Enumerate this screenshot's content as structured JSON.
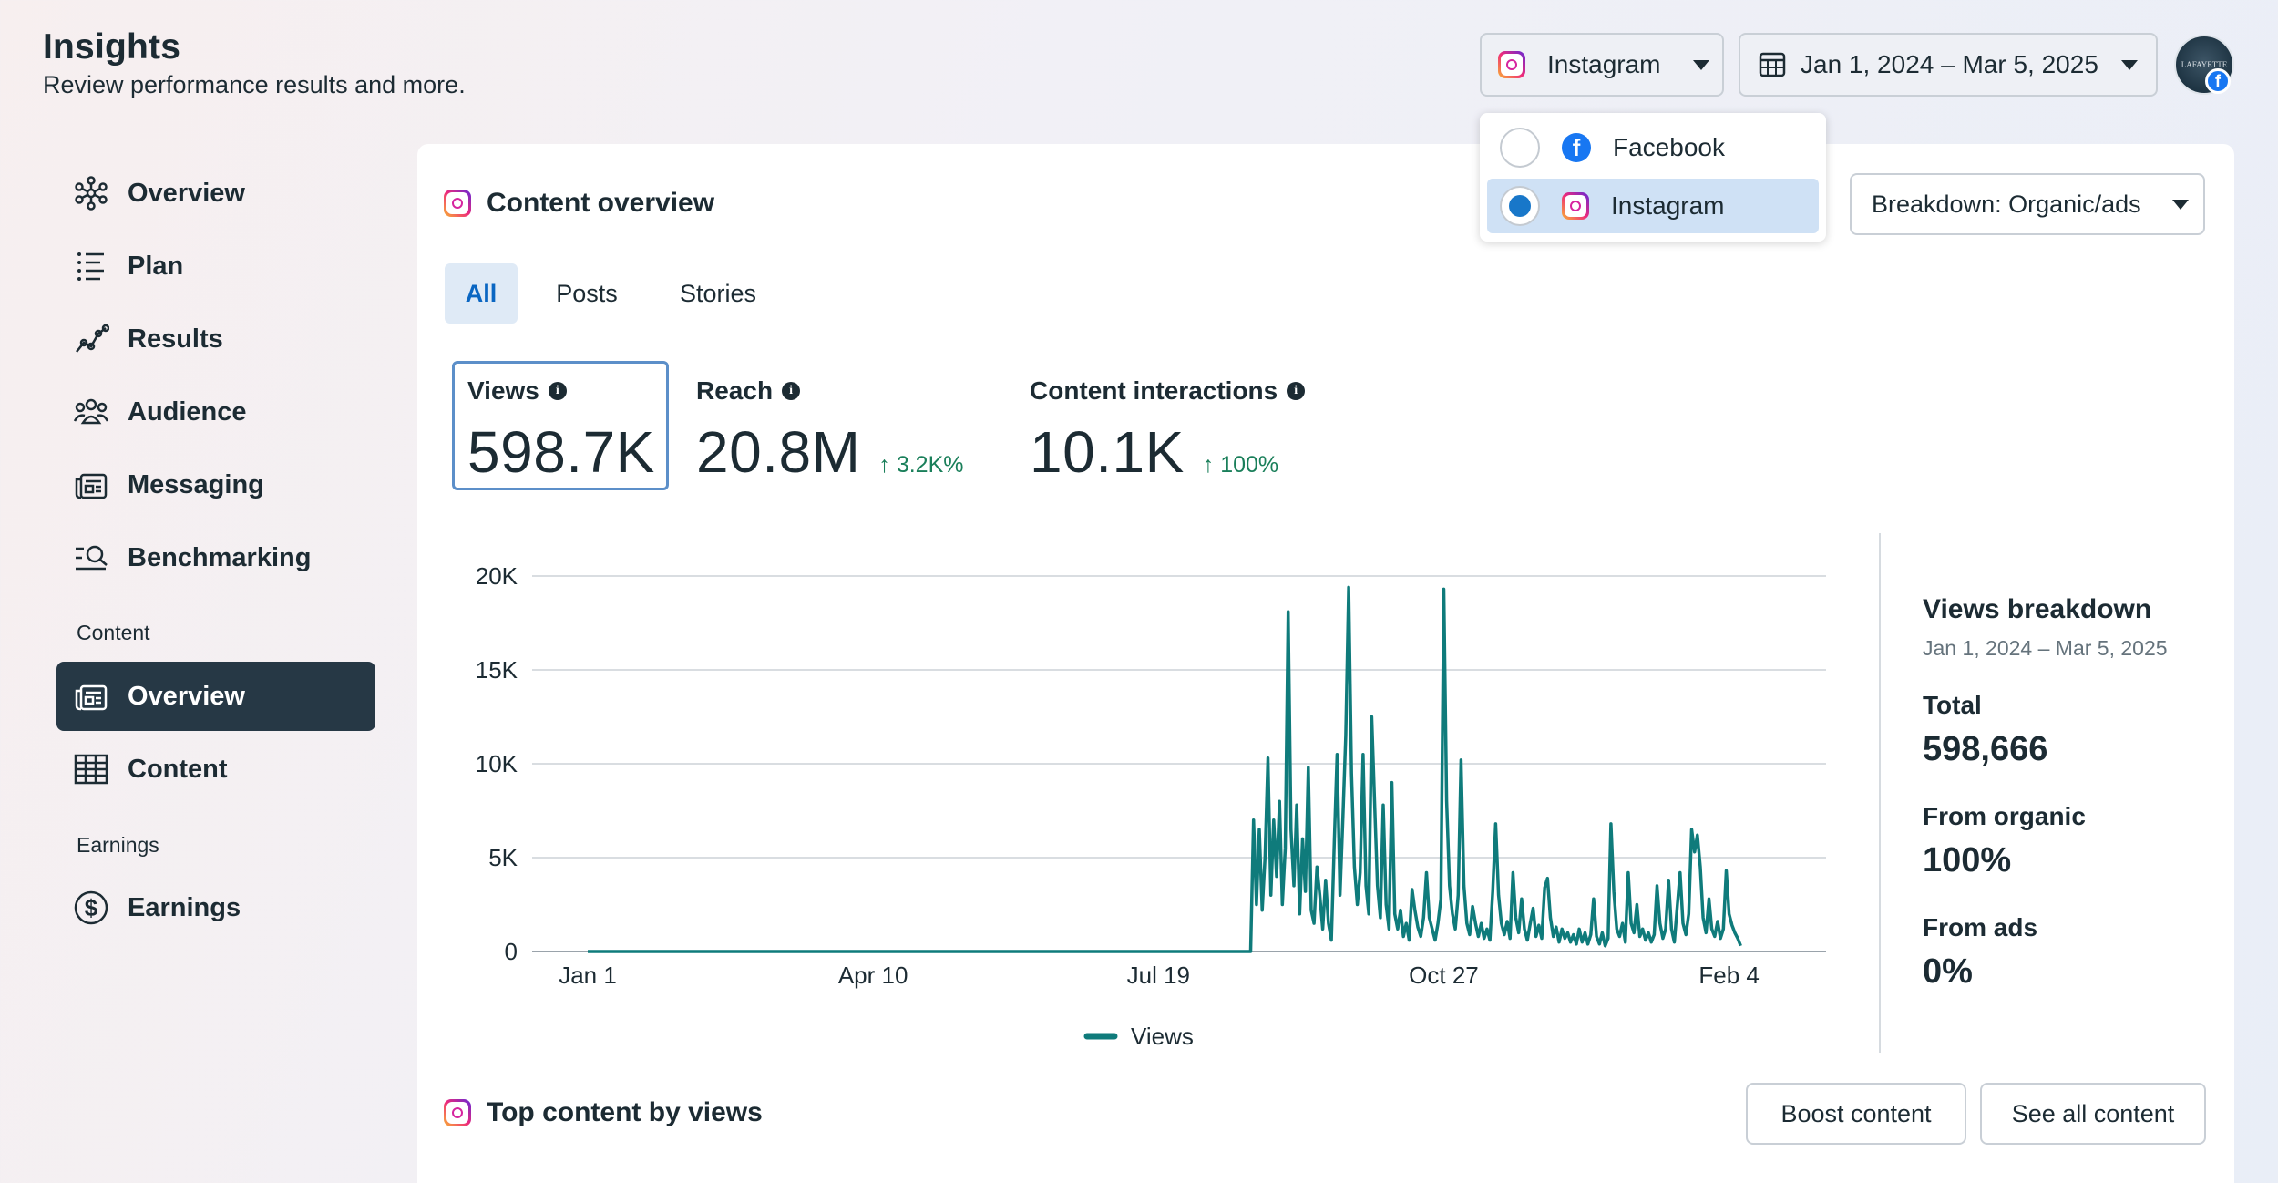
{
  "header": {
    "title": "Insights",
    "subtitle": "Review performance results and more.",
    "platform_selector": "Instagram",
    "date_range": "Jan 1, 2024 – Mar 5, 2025",
    "avatar_text": "LAFAYETTE"
  },
  "platform_dropdown": {
    "options": [
      {
        "label": "Facebook",
        "selected": false,
        "icon": "facebook-icon"
      },
      {
        "label": "Instagram",
        "selected": true,
        "icon": "instagram-icon"
      }
    ]
  },
  "sidebar": {
    "items": [
      {
        "label": "Overview",
        "icon": "overview-icon"
      },
      {
        "label": "Plan",
        "icon": "plan-icon"
      },
      {
        "label": "Results",
        "icon": "results-icon"
      },
      {
        "label": "Audience",
        "icon": "audience-icon"
      },
      {
        "label": "Messaging",
        "icon": "messaging-icon"
      },
      {
        "label": "Benchmarking",
        "icon": "benchmarking-icon"
      }
    ],
    "content_section": "Content",
    "content_items": [
      {
        "label": "Overview",
        "icon": "content-overview-icon",
        "active": true
      },
      {
        "label": "Content",
        "icon": "table-icon"
      }
    ],
    "earnings_section": "Earnings",
    "earnings_items": [
      {
        "label": "Earnings",
        "icon": "dollar-icon"
      }
    ]
  },
  "content_overview": {
    "title": "Content overview",
    "breakdown": "Breakdown: Organic/ads",
    "tabs": [
      "All",
      "Posts",
      "Stories"
    ],
    "active_tab": "All",
    "metrics": {
      "views": {
        "label": "Views",
        "value": "598.7K"
      },
      "reach": {
        "label": "Reach",
        "value": "20.8M",
        "delta": "3.2K%"
      },
      "interactions": {
        "label": "Content interactions",
        "value": "10.1K",
        "delta": "100%"
      }
    }
  },
  "chart_data": {
    "type": "line",
    "title": "",
    "xlabel": "",
    "ylabel": "",
    "x_tick_labels": [
      "Jan 1",
      "Apr 10",
      "Jul 19",
      "Oct 27",
      "Feb 4"
    ],
    "y_tick_labels": [
      "0",
      "5K",
      "10K",
      "15K",
      "20K"
    ],
    "ylim": [
      0,
      20000
    ],
    "xlim_days": [
      0,
      429
    ],
    "series": [
      {
        "name": "Views",
        "color": "#0f7b7b",
        "points_day_value": [
          [
            0,
            0
          ],
          [
            230,
            0
          ],
          [
            231,
            7000
          ],
          [
            232,
            2500
          ],
          [
            233,
            6500
          ],
          [
            234,
            2200
          ],
          [
            235,
            5000
          ],
          [
            236,
            10300
          ],
          [
            237,
            3000
          ],
          [
            238,
            7000
          ],
          [
            239,
            4000
          ],
          [
            240,
            8000
          ],
          [
            241,
            2500
          ],
          [
            242,
            5500
          ],
          [
            243,
            18100
          ],
          [
            244,
            6500
          ],
          [
            245,
            3500
          ],
          [
            246,
            7800
          ],
          [
            247,
            2000
          ],
          [
            248,
            6000
          ],
          [
            249,
            3200
          ],
          [
            250,
            9800
          ],
          [
            251,
            2200
          ],
          [
            252,
            1500
          ],
          [
            253,
            4500
          ],
          [
            254,
            3000
          ],
          [
            255,
            1200
          ],
          [
            256,
            3800
          ],
          [
            257,
            1500
          ],
          [
            258,
            600
          ],
          [
            259,
            5800
          ],
          [
            260,
            10500
          ],
          [
            261,
            3000
          ],
          [
            262,
            7200
          ],
          [
            263,
            11500
          ],
          [
            264,
            19400
          ],
          [
            265,
            9500
          ],
          [
            266,
            4500
          ],
          [
            267,
            2500
          ],
          [
            268,
            4200
          ],
          [
            269,
            10500
          ],
          [
            270,
            3500
          ],
          [
            271,
            2000
          ],
          [
            272,
            12500
          ],
          [
            273,
            8000
          ],
          [
            274,
            3500
          ],
          [
            275,
            1800
          ],
          [
            276,
            7800
          ],
          [
            277,
            2500
          ],
          [
            278,
            1200
          ],
          [
            279,
            9000
          ],
          [
            280,
            2000
          ],
          [
            281,
            1200
          ],
          [
            282,
            2200
          ],
          [
            283,
            800
          ],
          [
            284,
            1500
          ],
          [
            285,
            600
          ],
          [
            286,
            3300
          ],
          [
            287,
            2200
          ],
          [
            288,
            1300
          ],
          [
            289,
            800
          ],
          [
            290,
            1800
          ],
          [
            291,
            4200
          ],
          [
            292,
            1800
          ],
          [
            293,
            1200
          ],
          [
            294,
            600
          ],
          [
            295,
            1500
          ],
          [
            296,
            2800
          ],
          [
            297,
            19300
          ],
          [
            298,
            8000
          ],
          [
            299,
            3500
          ],
          [
            300,
            2000
          ],
          [
            301,
            1200
          ],
          [
            302,
            3000
          ],
          [
            303,
            10200
          ],
          [
            304,
            3500
          ],
          [
            305,
            1500
          ],
          [
            306,
            900
          ],
          [
            307,
            2400
          ],
          [
            308,
            1500
          ],
          [
            309,
            800
          ],
          [
            310,
            1500
          ],
          [
            311,
            700
          ],
          [
            312,
            1200
          ],
          [
            313,
            600
          ],
          [
            314,
            3200
          ],
          [
            315,
            6800
          ],
          [
            316,
            3000
          ],
          [
            317,
            1500
          ],
          [
            318,
            900
          ],
          [
            319,
            1600
          ],
          [
            320,
            700
          ],
          [
            321,
            4200
          ],
          [
            322,
            1800
          ],
          [
            323,
            1000
          ],
          [
            324,
            2800
          ],
          [
            325,
            1200
          ],
          [
            326,
            600
          ],
          [
            327,
            1500
          ],
          [
            328,
            2300
          ],
          [
            329,
            800
          ],
          [
            330,
            1400
          ],
          [
            331,
            700
          ],
          [
            332,
            3400
          ],
          [
            333,
            3900
          ],
          [
            334,
            1800
          ],
          [
            335,
            800
          ],
          [
            336,
            1300
          ],
          [
            337,
            500
          ],
          [
            338,
            1200
          ],
          [
            339,
            700
          ],
          [
            340,
            1000
          ],
          [
            341,
            500
          ],
          [
            342,
            900
          ],
          [
            343,
            400
          ],
          [
            344,
            1200
          ],
          [
            345,
            500
          ],
          [
            346,
            1000
          ],
          [
            347,
            400
          ],
          [
            348,
            900
          ],
          [
            349,
            2800
          ],
          [
            350,
            800
          ],
          [
            351,
            400
          ],
          [
            352,
            1000
          ],
          [
            353,
            300
          ],
          [
            354,
            700
          ],
          [
            355,
            6800
          ],
          [
            356,
            3200
          ],
          [
            357,
            1200
          ],
          [
            358,
            800
          ],
          [
            359,
            1500
          ],
          [
            360,
            500
          ],
          [
            361,
            4200
          ],
          [
            362,
            1500
          ],
          [
            363,
            1000
          ],
          [
            364,
            2500
          ],
          [
            365,
            800
          ],
          [
            366,
            1200
          ],
          [
            367,
            600
          ],
          [
            368,
            1000
          ],
          [
            369,
            500
          ],
          [
            370,
            900
          ],
          [
            371,
            3500
          ],
          [
            372,
            1500
          ],
          [
            373,
            700
          ],
          [
            374,
            1200
          ],
          [
            375,
            3800
          ],
          [
            376,
            1200
          ],
          [
            377,
            500
          ],
          [
            378,
            2400
          ],
          [
            379,
            4200
          ],
          [
            380,
            1500
          ],
          [
            381,
            900
          ],
          [
            382,
            2000
          ],
          [
            383,
            6500
          ],
          [
            384,
            5300
          ],
          [
            385,
            6200
          ],
          [
            386,
            4500
          ],
          [
            387,
            1800
          ],
          [
            388,
            1000
          ],
          [
            389,
            2800
          ],
          [
            390,
            1200
          ],
          [
            391,
            800
          ],
          [
            392,
            1600
          ],
          [
            393,
            700
          ],
          [
            394,
            1200
          ],
          [
            395,
            4300
          ],
          [
            396,
            2000
          ],
          [
            397,
            1400
          ],
          [
            398,
            1000
          ],
          [
            399,
            700
          ],
          [
            400,
            300
          ]
        ]
      }
    ],
    "legend": [
      "Views"
    ],
    "legend_position": "bottom",
    "grid": true
  },
  "views_breakdown": {
    "title": "Views breakdown",
    "date": "Jan 1, 2024 – Mar 5, 2025",
    "total_label": "Total",
    "total_value": "598,666",
    "organic_label": "From organic",
    "organic_value": "100%",
    "ads_label": "From ads",
    "ads_value": "0%"
  },
  "top_content": {
    "title": "Top content by views",
    "boost_button": "Boost content",
    "see_all_button": "See all content"
  }
}
